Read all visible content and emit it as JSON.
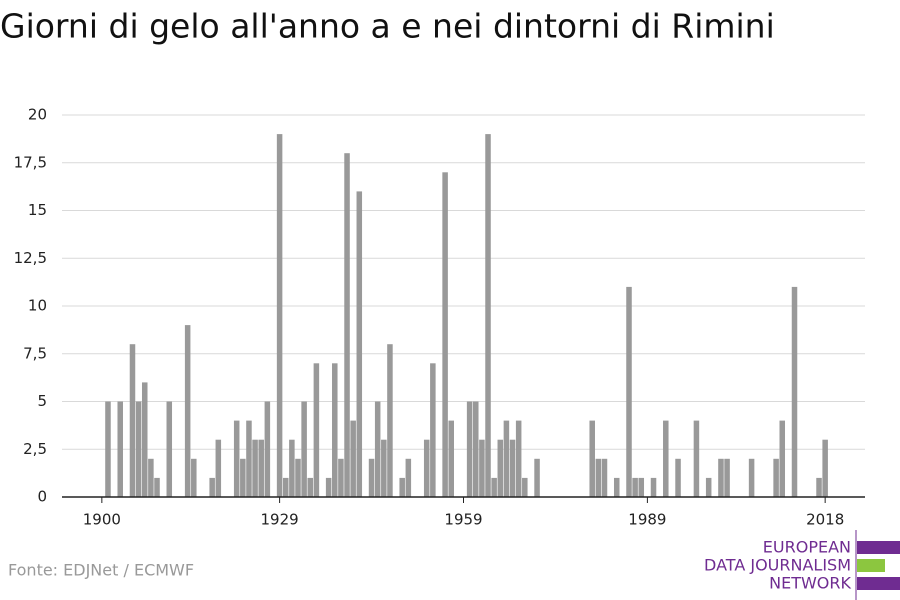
{
  "chart_data": {
    "type": "bar",
    "title": "Giorni di gelo all'anno a e nei dintorni di Rimini",
    "source": "Fonte: EDJNet / ECMWF",
    "logo": [
      "EUROPEAN",
      "DATA JOURNALISM",
      "NETWORK"
    ],
    "color": "#999999",
    "x": [
      1901,
      1903,
      1905,
      1906,
      1907,
      1908,
      1909,
      1911,
      1914,
      1915,
      1918,
      1919,
      1922,
      1923,
      1924,
      1925,
      1926,
      1927,
      1929,
      1930,
      1931,
      1932,
      1933,
      1934,
      1935,
      1937,
      1938,
      1939,
      1940,
      1941,
      1942,
      1944,
      1945,
      1946,
      1947,
      1949,
      1950,
      1953,
      1954,
      1956,
      1957,
      1960,
      1961,
      1962,
      1963,
      1964,
      1965,
      1966,
      1967,
      1968,
      1969,
      1971,
      1980,
      1981,
      1982,
      1984,
      1986,
      1987,
      1988,
      1990,
      1992,
      1994,
      1997,
      1999,
      2001,
      2002,
      2006,
      2010,
      2011,
      2013,
      2017,
      2018
    ],
    "values": [
      5,
      5,
      8,
      5,
      6,
      2,
      1,
      5,
      9,
      2,
      1,
      3,
      4,
      2,
      4,
      3,
      3,
      5,
      19,
      1,
      3,
      2,
      5,
      1,
      7,
      1,
      7,
      2,
      18,
      4,
      16,
      2,
      5,
      3,
      8,
      1,
      2,
      3,
      7,
      17,
      4,
      5,
      5,
      3,
      19,
      1,
      3,
      4,
      3,
      4,
      1,
      2,
      4,
      2,
      2,
      1,
      11,
      1,
      1,
      1,
      4,
      2,
      4,
      1,
      2,
      2,
      2,
      2,
      4,
      11,
      1,
      3
    ],
    "xlim": [
      1893.5,
      2024.5
    ],
    "xticks": [
      1900,
      1929,
      1959,
      1989,
      2018
    ],
    "ylim": [
      0,
      20
    ],
    "yticks": [
      0,
      {
        "value": 2.5,
        "label": "2,5"
      },
      5,
      {
        "value": 7.5,
        "label": "7,5"
      },
      10,
      {
        "value": 12.5,
        "label": "12,5"
      },
      15,
      {
        "value": 17.5,
        "label": "17,5"
      },
      20
    ],
    "grid": true
  }
}
